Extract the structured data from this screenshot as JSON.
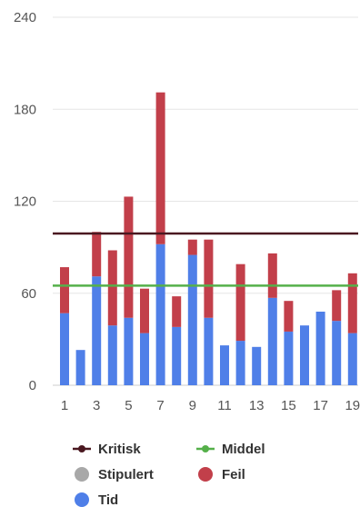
{
  "chart_data": {
    "type": "bar",
    "stacked": true,
    "categories": [
      "1",
      "2",
      "3",
      "4",
      "5",
      "6",
      "7",
      "8",
      "9",
      "10",
      "11",
      "12",
      "13",
      "14",
      "15",
      "16",
      "17",
      "18",
      "19"
    ],
    "x_tick_labels": [
      "1",
      "3",
      "5",
      "7",
      "9",
      "11",
      "13",
      "15",
      "17",
      "19"
    ],
    "ylim": [
      0,
      240
    ],
    "y_ticks": [
      0,
      60,
      120,
      180,
      240
    ],
    "grid": "horizontal",
    "legend_position": "bottom",
    "series": [
      {
        "name": "Tid",
        "type": "bar",
        "color": "#4f7fe8",
        "values": [
          47,
          23,
          71,
          39,
          44,
          34,
          92,
          38,
          85,
          44,
          26,
          29,
          25,
          57,
          35,
          39,
          48,
          42,
          34
        ]
      },
      {
        "name": "Feil",
        "type": "bar",
        "color": "#c23f4a",
        "values": [
          30,
          0,
          29,
          49,
          79,
          29,
          99,
          20,
          10,
          51,
          0,
          50,
          0,
          29,
          20,
          0,
          0,
          20,
          39
        ]
      },
      {
        "name": "Kritisk",
        "type": "line",
        "color": "#4a1820",
        "value": 99
      },
      {
        "name": "Middel",
        "type": "line",
        "color": "#55b04a",
        "value": 65
      },
      {
        "name": "Stipulert",
        "type": "marker",
        "color": "#a8a8a8"
      }
    ]
  },
  "legend": {
    "items": [
      {
        "label": "Kritisk",
        "kind": "line",
        "color": "#4a1820"
      },
      {
        "label": "Middel",
        "kind": "line",
        "color": "#55b04a"
      },
      {
        "label": "Stipulert",
        "kind": "dot",
        "color": "#a8a8a8"
      },
      {
        "label": "Feil",
        "kind": "dot",
        "color": "#c23f4a"
      },
      {
        "label": "Tid",
        "kind": "dot",
        "color": "#4f7fe8"
      }
    ]
  }
}
